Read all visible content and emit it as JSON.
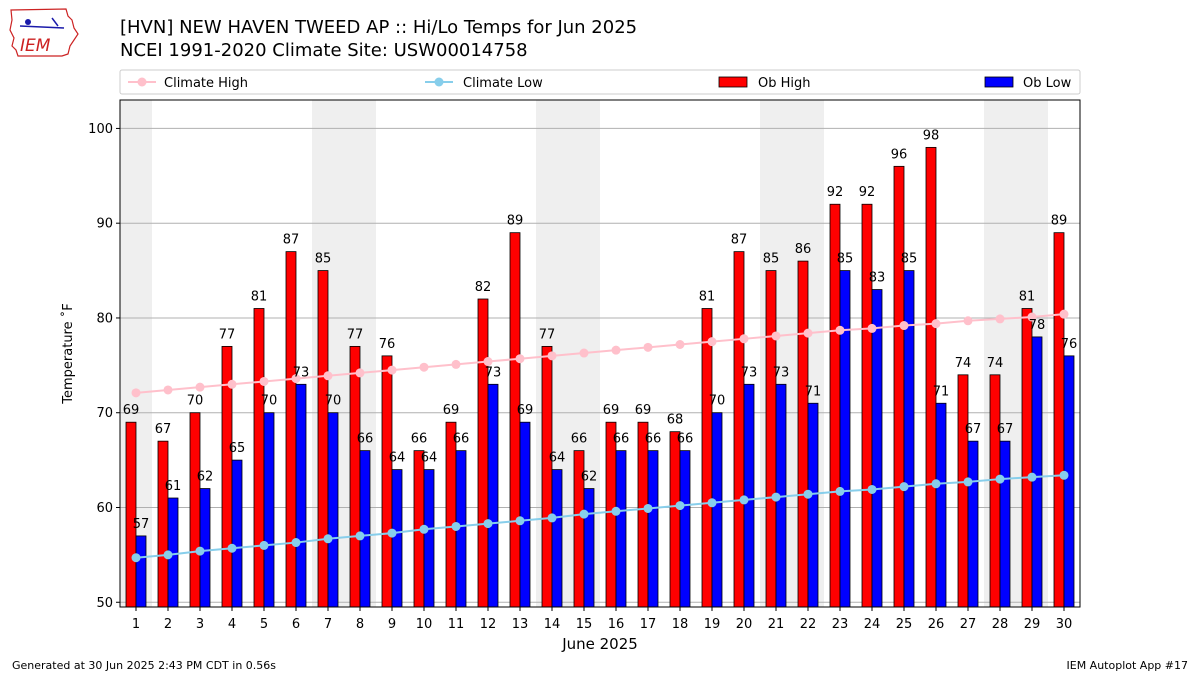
{
  "header": {
    "title_line1": "[HVN] NEW HAVEN TWEED AP :: Hi/Lo Temps for Jun 2025",
    "title_line2": "NCEI 1991-2020 Climate Site: USW00014758",
    "logo_text": "IEM"
  },
  "footer": {
    "generated": "Generated at 30 Jun 2025 2:43 PM CDT in 0.56s",
    "app": "IEM Autoplot App #17"
  },
  "chart_data": {
    "type": "bar",
    "xlabel": "June 2025",
    "ylabel": "Temperature ˚F",
    "ylim": [
      49.5,
      103
    ],
    "yticks": [
      50,
      60,
      70,
      80,
      90,
      100
    ],
    "grid": "horizontal",
    "legend_position": "top",
    "categories": [
      "1",
      "2",
      "3",
      "4",
      "5",
      "6",
      "7",
      "8",
      "9",
      "10",
      "11",
      "12",
      "13",
      "14",
      "15",
      "16",
      "17",
      "18",
      "19",
      "20",
      "21",
      "22",
      "23",
      "24",
      "25",
      "26",
      "27",
      "28",
      "29",
      "30"
    ],
    "weekend_shading": [
      [
        1,
        1
      ],
      [
        7,
        8
      ],
      [
        14,
        15
      ],
      [
        21,
        22
      ],
      [
        28,
        29
      ]
    ],
    "colors": {
      "ob_high": "#ff0000",
      "ob_low": "#0000ff",
      "climate_high": "#ffc0cb",
      "climate_low": "#87ceeb",
      "shade": "#efefef",
      "grid": "#b0b0b0"
    },
    "series": [
      {
        "name": "Ob High",
        "kind": "bar",
        "values": [
          69,
          67,
          70,
          77,
          81,
          87,
          85,
          77,
          76,
          66,
          69,
          82,
          89,
          77,
          66,
          69,
          69,
          68,
          81,
          87,
          85,
          86,
          92,
          92,
          96,
          98,
          74,
          74,
          81,
          89
        ]
      },
      {
        "name": "Ob Low",
        "kind": "bar",
        "values": [
          57,
          61,
          62,
          65,
          70,
          73,
          70,
          66,
          64,
          64,
          66,
          73,
          69,
          64,
          62,
          66,
          66,
          66,
          70,
          73,
          73,
          71,
          85,
          83,
          85,
          71,
          67,
          67,
          78,
          76
        ]
      },
      {
        "name": "Climate High",
        "kind": "line",
        "values": [
          72.1,
          72.4,
          72.7,
          73.0,
          73.3,
          73.6,
          73.9,
          74.2,
          74.5,
          74.8,
          75.1,
          75.4,
          75.7,
          76.0,
          76.3,
          76.6,
          76.9,
          77.2,
          77.5,
          77.8,
          78.1,
          78.4,
          78.7,
          78.9,
          79.2,
          79.4,
          79.7,
          79.9,
          80.1,
          80.4
        ]
      },
      {
        "name": "Climate Low",
        "kind": "line",
        "values": [
          54.7,
          55.0,
          55.4,
          55.7,
          56.0,
          56.3,
          56.7,
          57.0,
          57.3,
          57.7,
          58.0,
          58.3,
          58.6,
          58.9,
          59.3,
          59.6,
          59.9,
          60.2,
          60.5,
          60.8,
          61.1,
          61.4,
          61.7,
          61.9,
          62.2,
          62.5,
          62.7,
          63.0,
          63.2,
          63.4
        ]
      }
    ]
  }
}
